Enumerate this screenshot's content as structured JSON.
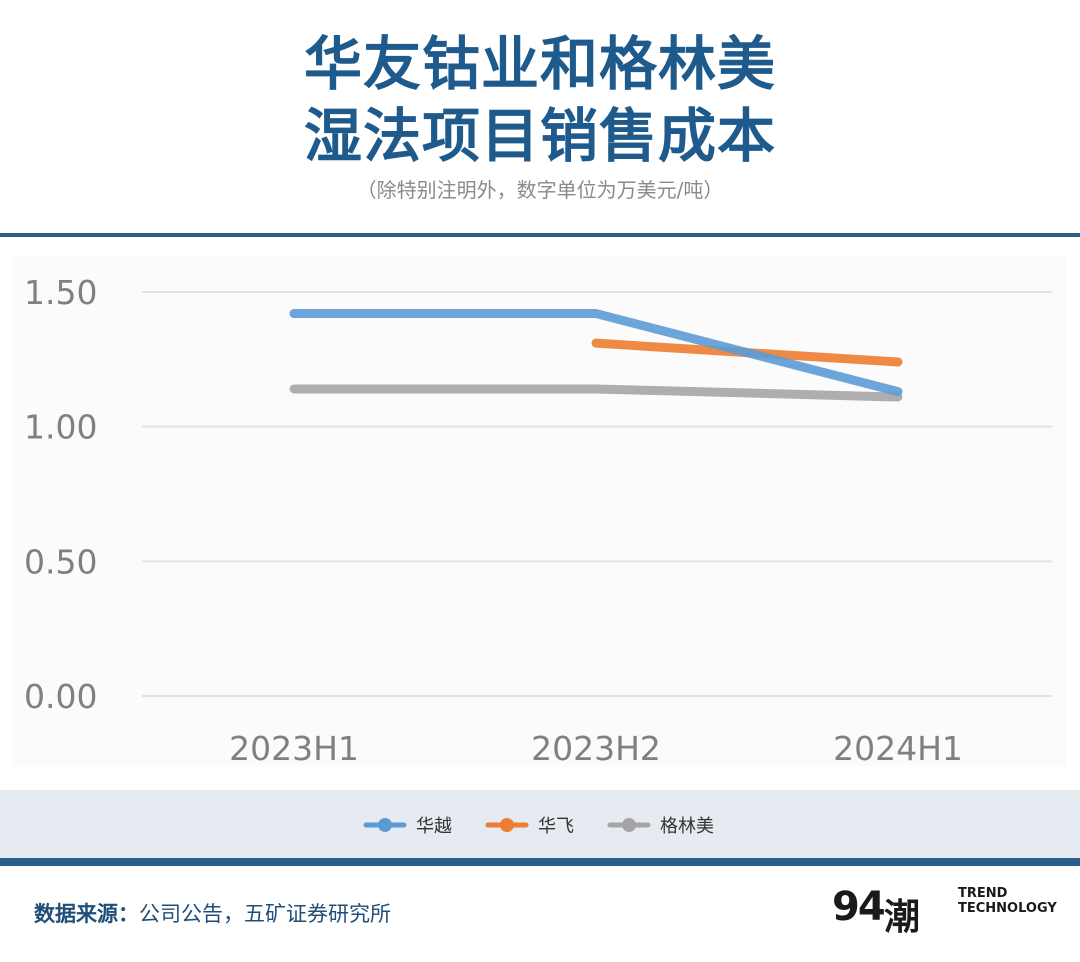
{
  "title_lines": [
    "华友钴业和格林美",
    "湿法项目销售成本"
  ],
  "subtitle": "（除特别注明外，数字单位为万美元/吨）",
  "source": {
    "label": "数据来源：",
    "text": "公司公告，五矿证券研究所"
  },
  "logo": {
    "num": "94",
    "glyph": "潮",
    "line1": "TREND",
    "line2": "TECHNOLOGY"
  },
  "colors": {
    "title": "#1f5a8c",
    "rule": "#2b5f8a",
    "legend_band": "#e6ebf2"
  },
  "chart_data": {
    "type": "line",
    "categories": [
      "2023H1",
      "2023H2",
      "2024H1"
    ],
    "ylim": [
      0,
      1.5
    ],
    "yticks": [
      "0.00",
      "0.50",
      "1.00",
      "1.50"
    ],
    "grid": true,
    "legend_position": "bottom",
    "series": [
      {
        "name": "华越",
        "color": "#5b9bd5",
        "values": [
          1.42,
          1.42,
          1.13
        ]
      },
      {
        "name": "华飞",
        "color": "#ed7d31",
        "values": [
          null,
          1.31,
          1.24
        ]
      },
      {
        "name": "格林美",
        "color": "#a5a5a5",
        "values": [
          1.14,
          1.14,
          1.11
        ]
      }
    ]
  }
}
